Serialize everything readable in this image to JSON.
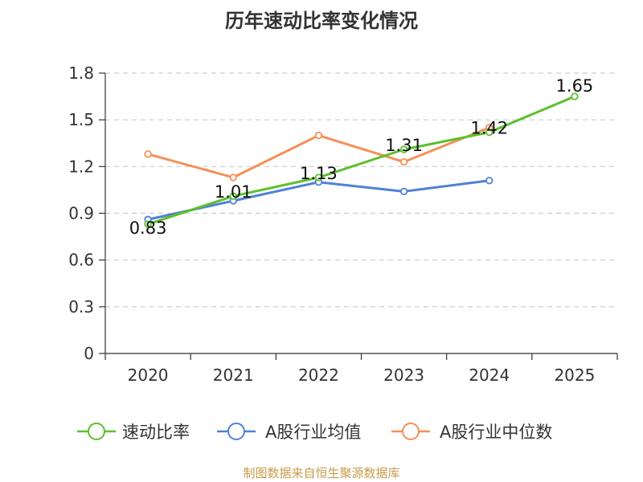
{
  "chart_data": {
    "type": "line",
    "title": "历年速动比率变化情况",
    "xlabel": "",
    "ylabel": "",
    "categories": [
      "2020",
      "2021",
      "2022",
      "2023",
      "2024",
      "2025"
    ],
    "ylim": [
      0,
      1.8
    ],
    "yticks": [
      "0",
      "0.3",
      "0.6",
      "0.9",
      "1.2",
      "1.5",
      "1.8"
    ],
    "grid": true,
    "legend_position": "bottom",
    "series": [
      {
        "name": "速动比率",
        "color": "#5cc02c",
        "values": [
          0.83,
          1.01,
          1.13,
          1.31,
          1.42,
          1.65
        ],
        "labels": [
          "0.83",
          "1.01",
          "1.13",
          "1.31",
          "1.42",
          "1.65"
        ]
      },
      {
        "name": "A股行业均值",
        "color": "#4f81d6",
        "values": [
          0.86,
          0.98,
          1.1,
          1.04,
          1.11,
          null
        ]
      },
      {
        "name": "A股行业中位数",
        "color": "#f59058",
        "values": [
          1.28,
          1.13,
          1.4,
          1.23,
          1.45,
          null
        ]
      }
    ]
  },
  "source": "制图数据来自恒生聚源数据库"
}
